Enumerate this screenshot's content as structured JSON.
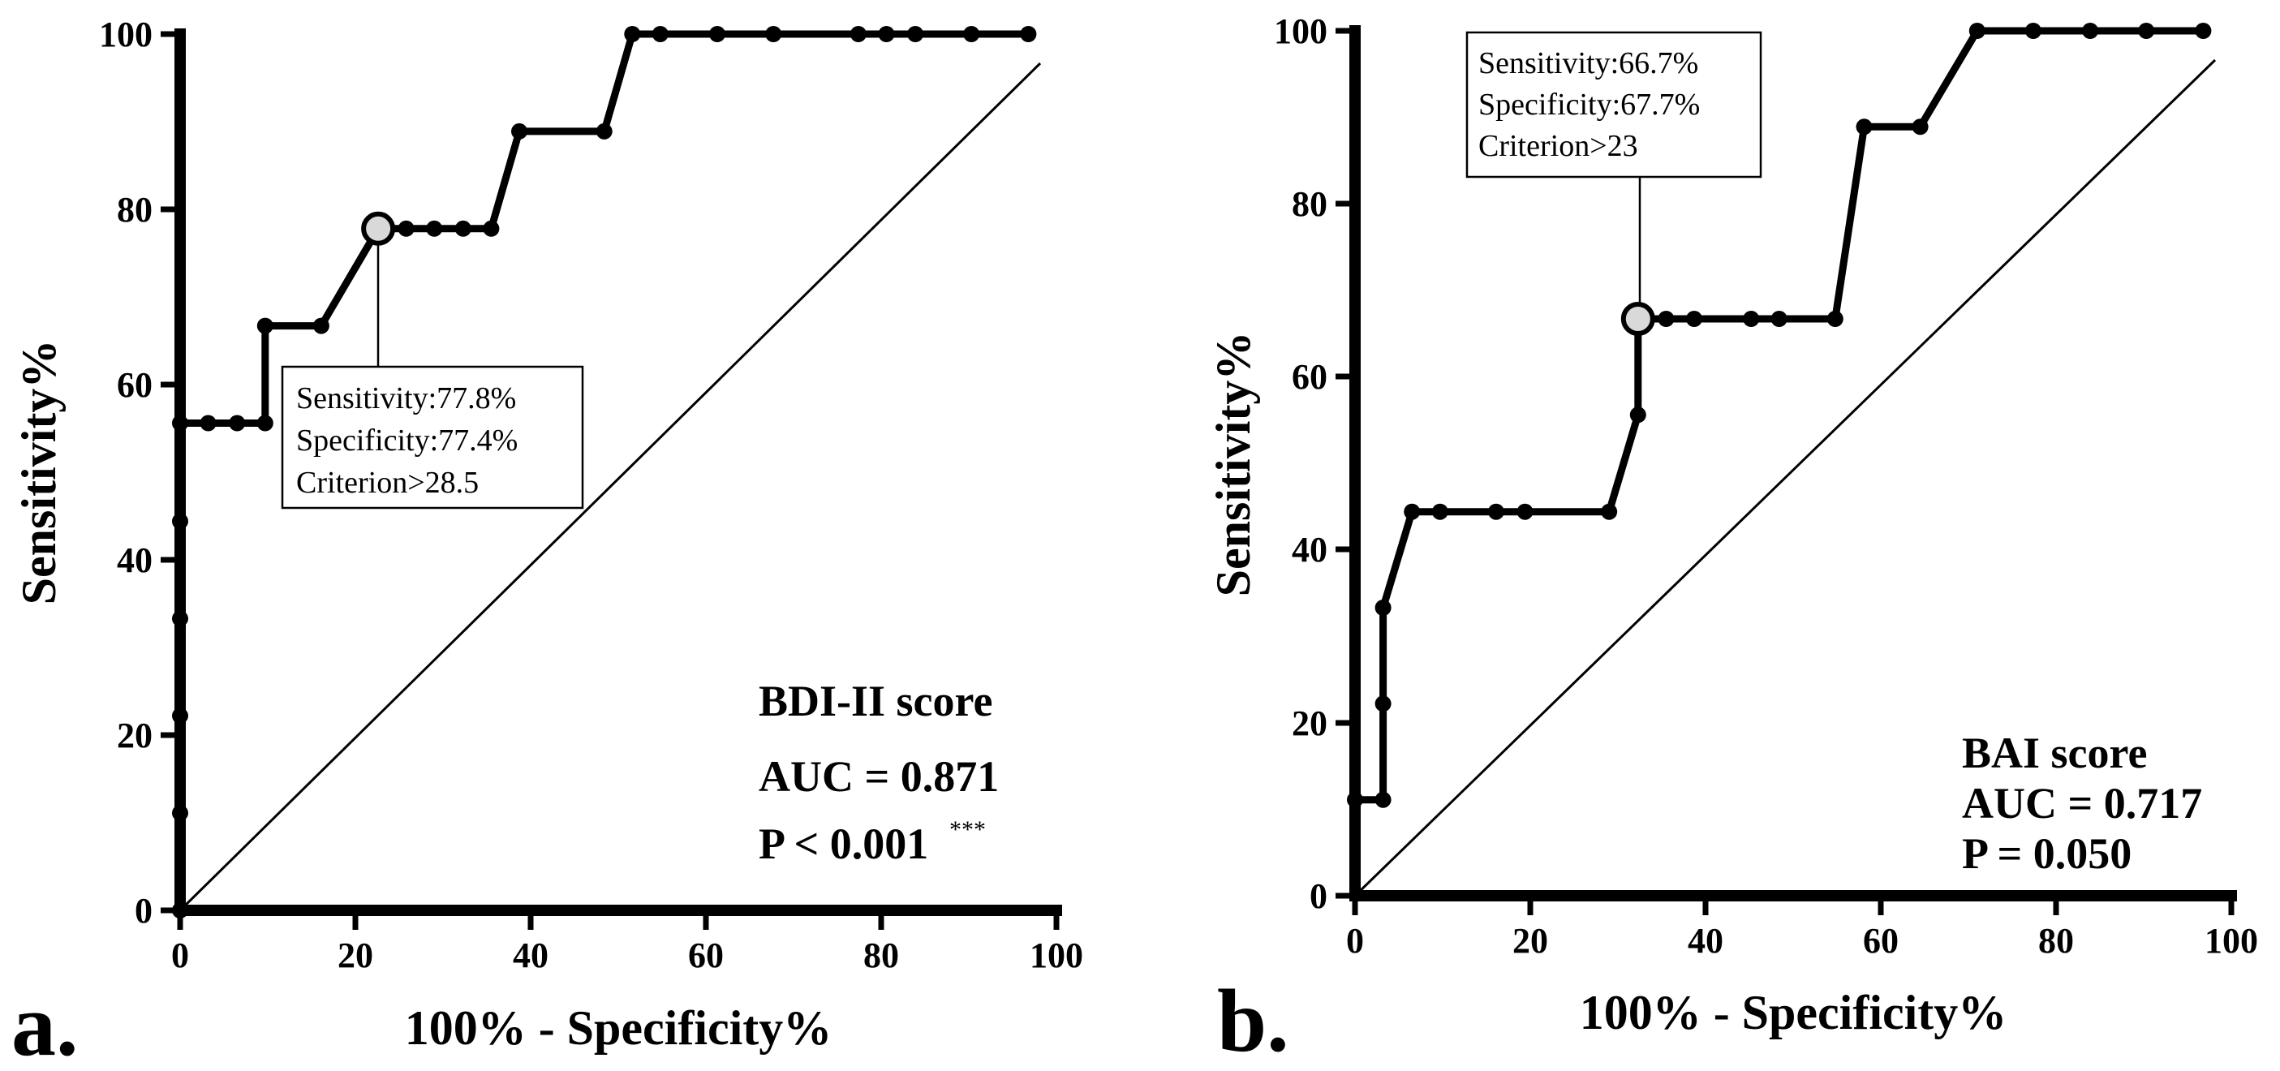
{
  "chart_data": [
    {
      "type": "line",
      "panel_label": "a.",
      "xlabel": "100% - Specificity%",
      "ylabel": "Sensitivity%",
      "xlim": [
        0,
        100
      ],
      "ylim": [
        0,
        100
      ],
      "xticks": [
        "0",
        "20",
        "40",
        "60",
        "80",
        "100"
      ],
      "yticks": [
        "0",
        "20",
        "40",
        "60",
        "80",
        "100"
      ],
      "series": [
        {
          "name": "BDI-II score",
          "x": [
            0,
            0,
            0,
            0,
            0,
            0,
            3.2,
            6.5,
            9.7,
            9.7,
            16.1,
            22.6,
            25.8,
            29,
            32.3,
            35.5,
            38.7,
            48.4,
            51.6,
            54.8,
            61.3,
            67.7,
            77.4,
            80.6,
            83.9,
            90.3,
            96.8
          ],
          "y": [
            0,
            11.1,
            22.2,
            33.3,
            44.4,
            55.6,
            55.6,
            55.6,
            55.6,
            66.7,
            66.7,
            77.8,
            77.8,
            77.8,
            77.8,
            77.8,
            88.9,
            88.9,
            100,
            100,
            100,
            100,
            100,
            100,
            100,
            100,
            100
          ]
        }
      ],
      "cutoff": {
        "x": 22.6,
        "y": 77.8
      },
      "callout": [
        "Sensitivity:77.8%",
        "Specificity:77.4%",
        "Criterion>28.5"
      ],
      "annotations": {
        "title": "BDI-II score",
        "auc": "AUC = 0.871",
        "p": "P < 0.001",
        "sig": "***"
      }
    },
    {
      "type": "line",
      "panel_label": "b.",
      "xlabel": "100% - Specificity%",
      "ylabel": "Sensitivity%",
      "xlim": [
        0,
        100
      ],
      "ylim": [
        0,
        100
      ],
      "xticks": [
        "0",
        "20",
        "40",
        "60",
        "80",
        "100"
      ],
      "yticks": [
        "0",
        "20",
        "40",
        "60",
        "80",
        "100"
      ],
      "series": [
        {
          "name": "BAI score",
          "x": [
            0,
            3.2,
            3.2,
            3.2,
            6.5,
            9.7,
            16.1,
            19.4,
            29,
            32.3,
            32.3,
            35.5,
            38.7,
            45.2,
            48.4,
            54.8,
            58.1,
            64.5,
            71,
            77.4,
            83.9,
            90.3,
            96.8
          ],
          "y": [
            11.1,
            11.1,
            22.2,
            33.3,
            44.4,
            44.4,
            44.4,
            44.4,
            44.4,
            55.6,
            66.7,
            66.7,
            66.7,
            66.7,
            66.7,
            66.7,
            88.9,
            88.9,
            100,
            100,
            100,
            100,
            100
          ]
        }
      ],
      "cutoff": {
        "x": 32.3,
        "y": 66.7
      },
      "callout": [
        "Sensitivity:66.7%",
        "Specificity:67.7%",
        "Criterion>23"
      ],
      "annotations": {
        "title": "BAI score",
        "auc": "AUC = 0.717",
        "p": "P = 0.050",
        "sig": ""
      }
    }
  ]
}
